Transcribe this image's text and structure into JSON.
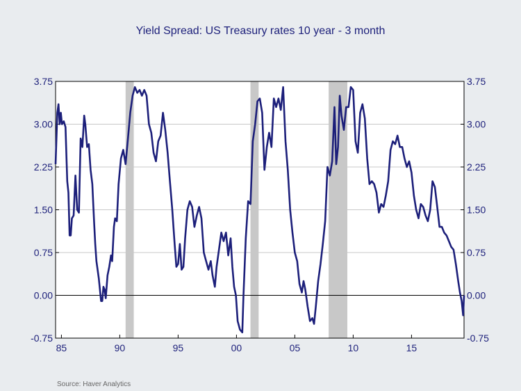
{
  "chart_data": {
    "type": "line",
    "title": "Yield Spread:  US Treasury rates 10 year - 3 month",
    "xlabel": "",
    "ylabel": "",
    "xlim": [
      1984.5,
      2019.5
    ],
    "ylim": [
      -0.75,
      3.75
    ],
    "yticks": [
      "3.75",
      "3.00",
      "2.25",
      "1.50",
      "0.75",
      "0.00",
      "-0.75"
    ],
    "ytick_values": [
      3.75,
      3.0,
      2.25,
      1.5,
      0.75,
      0.0,
      -0.75
    ],
    "xticks": [
      "85",
      "90",
      "95",
      "00",
      "05",
      "10",
      "15"
    ],
    "xtick_values": [
      1985,
      1990,
      1995,
      2000,
      2005,
      2010,
      2015
    ],
    "grid": true,
    "recession_bands": [
      [
        1990.5,
        1991.2
      ],
      [
        2001.2,
        2001.9
      ],
      [
        2007.9,
        2009.5
      ]
    ],
    "line_color": "#1c1f7a",
    "recession_color": "#c8c8c8",
    "series": [
      {
        "points": [
          [
            1984.5,
            2.3
          ],
          [
            1984.65,
            3.2
          ],
          [
            1984.75,
            3.35
          ],
          [
            1984.85,
            3.0
          ],
          [
            1984.95,
            3.2
          ],
          [
            1985.05,
            3.0
          ],
          [
            1985.2,
            3.05
          ],
          [
            1985.35,
            2.95
          ],
          [
            1985.5,
            2.0
          ],
          [
            1985.6,
            1.8
          ],
          [
            1985.7,
            1.05
          ],
          [
            1985.8,
            1.05
          ],
          [
            1985.9,
            1.35
          ],
          [
            1986.05,
            1.4
          ],
          [
            1986.2,
            2.1
          ],
          [
            1986.35,
            1.5
          ],
          [
            1986.5,
            1.45
          ],
          [
            1986.65,
            2.75
          ],
          [
            1986.8,
            2.6
          ],
          [
            1986.95,
            3.15
          ],
          [
            1987.05,
            3.0
          ],
          [
            1987.2,
            2.6
          ],
          [
            1987.35,
            2.65
          ],
          [
            1987.5,
            2.2
          ],
          [
            1987.65,
            1.95
          ],
          [
            1987.8,
            1.3
          ],
          [
            1987.9,
            0.9
          ],
          [
            1988.0,
            0.6
          ],
          [
            1988.2,
            0.3
          ],
          [
            1988.4,
            -0.1
          ],
          [
            1988.5,
            -0.1
          ],
          [
            1988.6,
            0.15
          ],
          [
            1988.7,
            0.1
          ],
          [
            1988.8,
            -0.05
          ],
          [
            1988.95,
            0.35
          ],
          [
            1989.1,
            0.5
          ],
          [
            1989.25,
            0.7
          ],
          [
            1989.35,
            0.6
          ],
          [
            1989.5,
            1.2
          ],
          [
            1989.6,
            1.35
          ],
          [
            1989.75,
            1.3
          ],
          [
            1989.9,
            1.95
          ],
          [
            1990.1,
            2.4
          ],
          [
            1990.3,
            2.55
          ],
          [
            1990.5,
            2.3
          ],
          [
            1990.7,
            2.75
          ],
          [
            1990.9,
            3.2
          ],
          [
            1991.1,
            3.5
          ],
          [
            1991.3,
            3.65
          ],
          [
            1991.5,
            3.55
          ],
          [
            1991.7,
            3.6
          ],
          [
            1991.9,
            3.5
          ],
          [
            1992.1,
            3.6
          ],
          [
            1992.3,
            3.5
          ],
          [
            1992.5,
            3.0
          ],
          [
            1992.7,
            2.85
          ],
          [
            1992.9,
            2.5
          ],
          [
            1993.1,
            2.35
          ],
          [
            1993.3,
            2.7
          ],
          [
            1993.5,
            2.8
          ],
          [
            1993.7,
            3.2
          ],
          [
            1993.9,
            2.9
          ],
          [
            1994.1,
            2.5
          ],
          [
            1994.3,
            2.0
          ],
          [
            1994.5,
            1.5
          ],
          [
            1994.7,
            0.9
          ],
          [
            1994.85,
            0.5
          ],
          [
            1995.0,
            0.55
          ],
          [
            1995.15,
            0.9
          ],
          [
            1995.3,
            0.45
          ],
          [
            1995.45,
            0.5
          ],
          [
            1995.6,
            1.0
          ],
          [
            1995.8,
            1.5
          ],
          [
            1996.0,
            1.65
          ],
          [
            1996.2,
            1.55
          ],
          [
            1996.4,
            1.2
          ],
          [
            1996.6,
            1.4
          ],
          [
            1996.8,
            1.55
          ],
          [
            1997.0,
            1.35
          ],
          [
            1997.2,
            0.75
          ],
          [
            1997.4,
            0.6
          ],
          [
            1997.6,
            0.45
          ],
          [
            1997.8,
            0.6
          ],
          [
            1997.95,
            0.35
          ],
          [
            1998.15,
            0.15
          ],
          [
            1998.3,
            0.5
          ],
          [
            1998.5,
            0.8
          ],
          [
            1998.7,
            1.1
          ],
          [
            1998.9,
            0.95
          ],
          [
            1999.1,
            1.1
          ],
          [
            1999.3,
            0.7
          ],
          [
            1999.5,
            1.0
          ],
          [
            1999.65,
            0.5
          ],
          [
            1999.8,
            0.15
          ],
          [
            1999.95,
            0.0
          ],
          [
            2000.1,
            -0.45
          ],
          [
            2000.3,
            -0.6
          ],
          [
            2000.5,
            -0.65
          ],
          [
            2000.6,
            0.0
          ],
          [
            2000.8,
            1.0
          ],
          [
            2001.0,
            1.65
          ],
          [
            2001.2,
            1.6
          ],
          [
            2001.4,
            2.7
          ],
          [
            2001.6,
            3.0
          ],
          [
            2001.8,
            3.4
          ],
          [
            2002.0,
            3.45
          ],
          [
            2002.2,
            3.2
          ],
          [
            2002.4,
            2.2
          ],
          [
            2002.6,
            2.6
          ],
          [
            2002.8,
            2.85
          ],
          [
            2003.0,
            2.6
          ],
          [
            2003.2,
            3.45
          ],
          [
            2003.4,
            3.3
          ],
          [
            2003.6,
            3.45
          ],
          [
            2003.8,
            3.25
          ],
          [
            2004.0,
            3.65
          ],
          [
            2004.2,
            2.7
          ],
          [
            2004.4,
            2.2
          ],
          [
            2004.6,
            1.5
          ],
          [
            2004.8,
            1.1
          ],
          [
            2005.0,
            0.75
          ],
          [
            2005.2,
            0.6
          ],
          [
            2005.4,
            0.2
          ],
          [
            2005.6,
            0.05
          ],
          [
            2005.75,
            0.25
          ],
          [
            2005.9,
            0.1
          ],
          [
            2006.1,
            -0.2
          ],
          [
            2006.3,
            -0.45
          ],
          [
            2006.5,
            -0.4
          ],
          [
            2006.65,
            -0.5
          ],
          [
            2006.8,
            -0.2
          ],
          [
            2007.0,
            0.25
          ],
          [
            2007.2,
            0.55
          ],
          [
            2007.4,
            0.9
          ],
          [
            2007.6,
            1.3
          ],
          [
            2007.8,
            2.25
          ],
          [
            2008.0,
            2.1
          ],
          [
            2008.2,
            2.35
          ],
          [
            2008.4,
            3.3
          ],
          [
            2008.55,
            2.3
          ],
          [
            2008.7,
            2.6
          ],
          [
            2008.85,
            3.5
          ],
          [
            2009.0,
            3.15
          ],
          [
            2009.2,
            2.9
          ],
          [
            2009.4,
            3.3
          ],
          [
            2009.6,
            3.3
          ],
          [
            2009.8,
            3.65
          ],
          [
            2010.0,
            3.6
          ],
          [
            2010.2,
            2.7
          ],
          [
            2010.4,
            2.5
          ],
          [
            2010.6,
            3.2
          ],
          [
            2010.8,
            3.35
          ],
          [
            2011.0,
            3.1
          ],
          [
            2011.2,
            2.4
          ],
          [
            2011.4,
            1.95
          ],
          [
            2011.6,
            2.0
          ],
          [
            2011.8,
            1.95
          ],
          [
            2012.0,
            1.8
          ],
          [
            2012.2,
            1.45
          ],
          [
            2012.4,
            1.6
          ],
          [
            2012.6,
            1.55
          ],
          [
            2012.8,
            1.75
          ],
          [
            2013.0,
            2.0
          ],
          [
            2013.2,
            2.55
          ],
          [
            2013.4,
            2.7
          ],
          [
            2013.6,
            2.65
          ],
          [
            2013.8,
            2.8
          ],
          [
            2014.0,
            2.6
          ],
          [
            2014.2,
            2.6
          ],
          [
            2014.4,
            2.4
          ],
          [
            2014.6,
            2.25
          ],
          [
            2014.8,
            2.35
          ],
          [
            2015.0,
            2.15
          ],
          [
            2015.2,
            1.75
          ],
          [
            2015.4,
            1.5
          ],
          [
            2015.6,
            1.35
          ],
          [
            2015.8,
            1.6
          ],
          [
            2016.0,
            1.55
          ],
          [
            2016.2,
            1.4
          ],
          [
            2016.4,
            1.3
          ],
          [
            2016.6,
            1.5
          ],
          [
            2016.8,
            2.0
          ],
          [
            2017.0,
            1.9
          ],
          [
            2017.2,
            1.55
          ],
          [
            2017.4,
            1.2
          ],
          [
            2017.6,
            1.2
          ],
          [
            2017.8,
            1.1
          ],
          [
            2018.0,
            1.05
          ],
          [
            2018.2,
            0.95
          ],
          [
            2018.4,
            0.85
          ],
          [
            2018.6,
            0.8
          ],
          [
            2018.8,
            0.55
          ],
          [
            2019.0,
            0.25
          ],
          [
            2019.15,
            0.05
          ],
          [
            2019.3,
            -0.1
          ],
          [
            2019.42,
            -0.35
          ],
          [
            2019.5,
            0.0
          ]
        ]
      }
    ]
  },
  "source_note": "Source:  Haver Analytics"
}
